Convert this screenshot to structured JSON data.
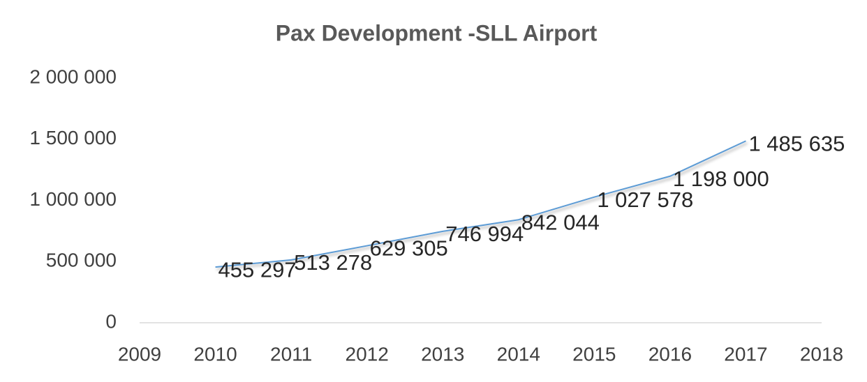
{
  "chart_data": {
    "type": "line",
    "title": "Pax Development -SLL Airport",
    "x": [
      2010,
      2011,
      2012,
      2013,
      2014,
      2015,
      2016,
      2017
    ],
    "series": [
      {
        "name": "Pax",
        "color": "#5b9bd5",
        "values": [
          455297,
          513278,
          629305,
          746994,
          842044,
          1027578,
          1198000,
          1485635
        ],
        "value_labels": [
          "455 297",
          "513 278",
          "629 305",
          "746 994",
          "842 044",
          "1 027 578",
          "1 198 000",
          "1 485 635"
        ]
      }
    ],
    "xlim": [
      2009,
      2018
    ],
    "xticks": [
      2009,
      2010,
      2011,
      2012,
      2013,
      2014,
      2015,
      2016,
      2017,
      2018
    ],
    "ylim": [
      0,
      2000000
    ],
    "yticks": [
      0,
      {
        "value": 500000,
        "label": "500 000"
      },
      {
        "value": 1000000,
        "label": "1 000 000"
      },
      {
        "value": 1500000,
        "label": "1 500 000"
      },
      {
        "value": 2000000,
        "label": "2 000 000"
      }
    ],
    "grid": false
  }
}
